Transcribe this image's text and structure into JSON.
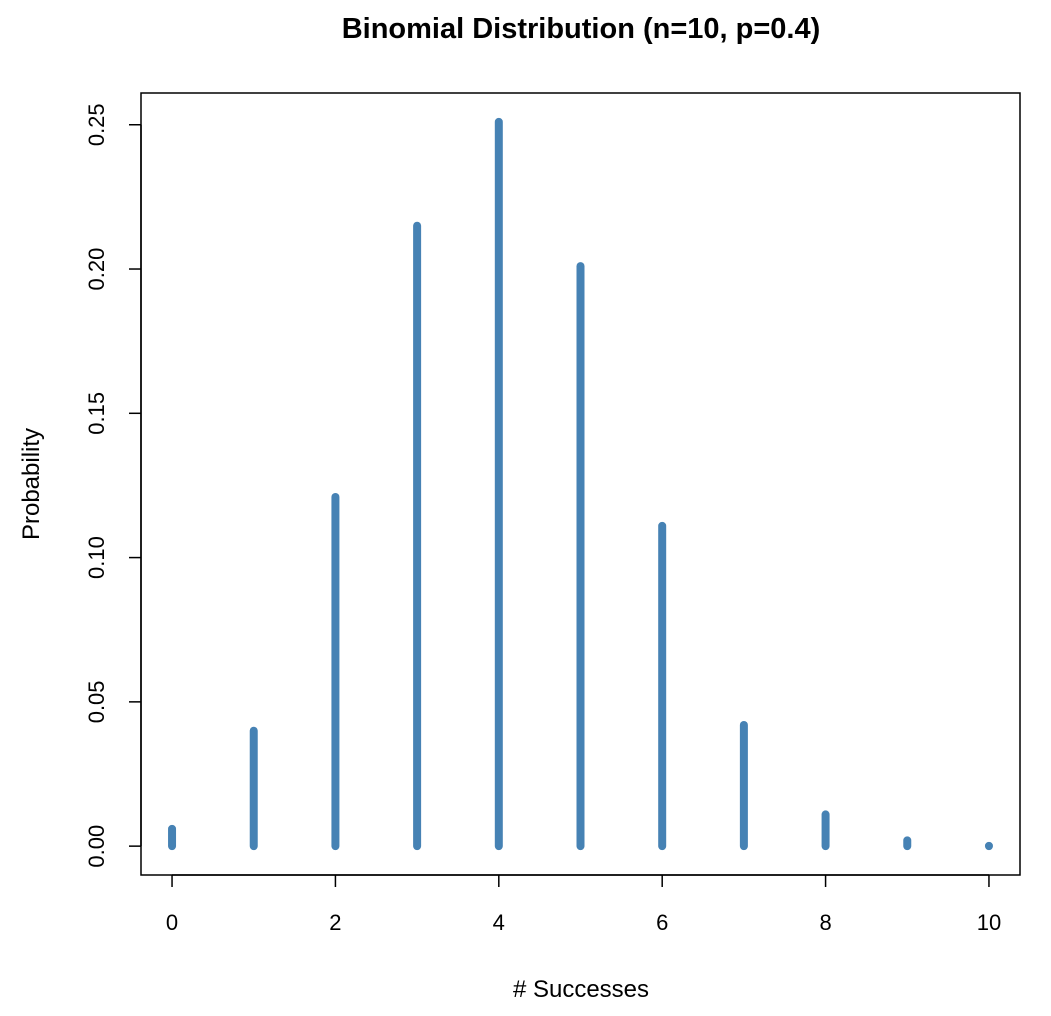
{
  "chart_data": {
    "type": "bar",
    "title": "Binomial Distribution (n=10, p=0.4)",
    "xlabel": "# Successes",
    "ylabel": "Probability",
    "x": [
      0,
      1,
      2,
      3,
      4,
      5,
      6,
      7,
      8,
      9,
      10
    ],
    "values": [
      0.006,
      0.04,
      0.121,
      0.215,
      0.251,
      0.201,
      0.111,
      0.042,
      0.011,
      0.002,
      0.0001
    ],
    "xlim": [
      -0.38,
      10.38
    ],
    "ylim": [
      -0.01,
      0.261
    ],
    "x_ticks": [
      0,
      2,
      4,
      6,
      8,
      10
    ],
    "x_tick_labels": [
      "0",
      "2",
      "4",
      "6",
      "8",
      "10"
    ],
    "y_ticks": [
      0.0,
      0.05,
      0.1,
      0.15,
      0.2,
      0.25
    ],
    "y_tick_labels": [
      "0.00",
      "0.05",
      "0.10",
      "0.15",
      "0.20",
      "0.25"
    ],
    "grid": false,
    "legend": "none",
    "bar_color": "#4682b4"
  }
}
